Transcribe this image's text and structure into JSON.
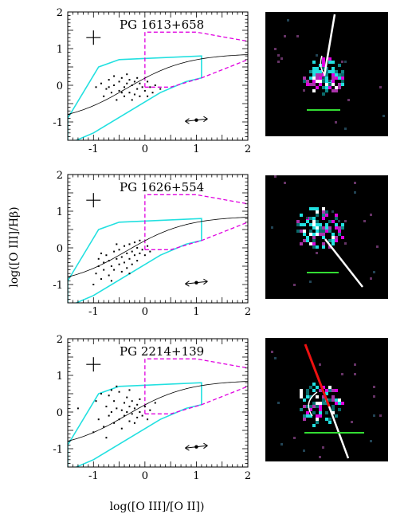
{
  "figure": {
    "ylabel": "log([O III]/Hβ)",
    "xlabel": "log([O III]/[O II])"
  },
  "colors": {
    "cyan": "#22e0e0",
    "magenta": "#e000e0",
    "green": "#33dd33",
    "red": "#ee1111",
    "white": "#ffffff",
    "image_bg": "#000000"
  },
  "chart_data": [
    {
      "type": "scatter",
      "title": "PG 1613+658",
      "xlim": [
        -1.5,
        2
      ],
      "ylim": [
        -1.5,
        2
      ],
      "x_ticks": [
        "-1",
        "0",
        "1",
        "2"
      ],
      "y_ticks": [
        "-1",
        "0",
        "1",
        "2"
      ],
      "points": [
        [
          -0.95,
          -0.05
        ],
        [
          -0.85,
          0.05
        ],
        [
          -0.8,
          -0.3
        ],
        [
          -0.75,
          -0.1
        ],
        [
          -0.7,
          0.15
        ],
        [
          -0.65,
          -0.2
        ],
        [
          -0.6,
          0.0
        ],
        [
          -0.55,
          -0.4
        ],
        [
          -0.5,
          0.1
        ],
        [
          -0.5,
          -0.15
        ],
        [
          -0.45,
          0.2
        ],
        [
          -0.4,
          -0.05
        ],
        [
          -0.4,
          -0.3
        ],
        [
          -0.35,
          0.05
        ],
        [
          -0.3,
          0.15
        ],
        [
          -0.3,
          -0.2
        ],
        [
          -0.25,
          0.0
        ],
        [
          -0.2,
          0.1
        ],
        [
          -0.2,
          -0.25
        ],
        [
          -0.15,
          -0.1
        ],
        [
          -0.1,
          0.05
        ],
        [
          -0.1,
          -0.3
        ],
        [
          -0.05,
          -0.05
        ],
        [
          0.0,
          -0.15
        ],
        [
          0.05,
          0.1
        ],
        [
          0.1,
          -0.05
        ],
        [
          0.15,
          -0.2
        ],
        [
          0.2,
          0.0
        ],
        [
          0.3,
          -0.1
        ],
        [
          -0.6,
          0.25
        ],
        [
          -0.25,
          -0.4
        ],
        [
          -0.35,
          0.3
        ],
        [
          -0.15,
          0.2
        ],
        [
          0.05,
          -0.3
        ],
        [
          -0.7,
          -0.05
        ],
        [
          -0.45,
          -0.2
        ]
      ]
    },
    {
      "type": "scatter",
      "title": "PG 1626+554",
      "xlim": [
        -1.5,
        2
      ],
      "ylim": [
        -1.5,
        2
      ],
      "x_ticks": [
        "-1",
        "0",
        "1",
        "2"
      ],
      "y_ticks": [
        "-1",
        "0",
        "1",
        "2"
      ],
      "points": [
        [
          -1.0,
          -1.0
        ],
        [
          -0.95,
          -0.7
        ],
        [
          -0.9,
          -0.5
        ],
        [
          -0.85,
          -0.85
        ],
        [
          -0.8,
          -0.4
        ],
        [
          -0.8,
          -0.6
        ],
        [
          -0.75,
          -0.2
        ],
        [
          -0.7,
          -0.75
        ],
        [
          -0.7,
          -0.35
        ],
        [
          -0.65,
          -0.5
        ],
        [
          -0.6,
          -0.1
        ],
        [
          -0.6,
          -0.6
        ],
        [
          -0.55,
          -0.3
        ],
        [
          -0.5,
          -0.45
        ],
        [
          -0.5,
          -0.05
        ],
        [
          -0.45,
          -0.25
        ],
        [
          -0.45,
          -0.65
        ],
        [
          -0.4,
          -0.4
        ],
        [
          -0.4,
          0.05
        ],
        [
          -0.35,
          -0.15
        ],
        [
          -0.35,
          -0.55
        ],
        [
          -0.3,
          -0.3
        ],
        [
          -0.3,
          0.1
        ],
        [
          -0.25,
          -0.1
        ],
        [
          -0.25,
          -0.45
        ],
        [
          -0.2,
          -0.2
        ],
        [
          -0.2,
          0.15
        ],
        [
          -0.15,
          -0.35
        ],
        [
          -0.15,
          0.0
        ],
        [
          -0.1,
          -0.15
        ],
        [
          -0.1,
          0.2
        ],
        [
          -0.05,
          -0.05
        ],
        [
          0.0,
          -0.2
        ],
        [
          0.05,
          0.05
        ],
        [
          0.1,
          -0.1
        ],
        [
          -0.9,
          -0.3
        ],
        [
          -0.65,
          -0.9
        ],
        [
          -0.55,
          0.1
        ],
        [
          -0.85,
          -0.15
        ],
        [
          -0.3,
          -0.7
        ]
      ]
    },
    {
      "type": "scatter",
      "title": "PG 2214+139",
      "xlim": [
        -1.5,
        2
      ],
      "ylim": [
        -1.5,
        2
      ],
      "x_ticks": [
        "-1",
        "0",
        "1",
        "2"
      ],
      "y_ticks": [
        "-1",
        "0",
        "1",
        "2"
      ],
      "points": [
        [
          -1.3,
          0.1
        ],
        [
          -1.0,
          -0.55
        ],
        [
          -0.95,
          0.3
        ],
        [
          -0.9,
          -0.2
        ],
        [
          -0.85,
          0.5
        ],
        [
          -0.8,
          -0.4
        ],
        [
          -0.75,
          0.15
        ],
        [
          -0.7,
          -0.1
        ],
        [
          -0.7,
          0.45
        ],
        [
          -0.65,
          0.0
        ],
        [
          -0.6,
          -0.3
        ],
        [
          -0.6,
          0.3
        ],
        [
          -0.55,
          0.1
        ],
        [
          -0.5,
          -0.2
        ],
        [
          -0.5,
          0.55
        ],
        [
          -0.45,
          0.05
        ],
        [
          -0.45,
          -0.45
        ],
        [
          -0.4,
          0.25
        ],
        [
          -0.4,
          -0.1
        ],
        [
          -0.35,
          0.4
        ],
        [
          -0.35,
          0.0
        ],
        [
          -0.3,
          -0.25
        ],
        [
          -0.3,
          0.15
        ],
        [
          -0.25,
          0.3
        ],
        [
          -0.25,
          -0.05
        ],
        [
          -0.2,
          0.1
        ],
        [
          -0.2,
          -0.3
        ],
        [
          -0.15,
          0.2
        ],
        [
          -0.15,
          -0.15
        ],
        [
          -0.1,
          0.0
        ],
        [
          -0.1,
          0.35
        ],
        [
          -0.05,
          -0.1
        ],
        [
          0.0,
          0.15
        ],
        [
          0.05,
          -0.2
        ],
        [
          0.1,
          0.05
        ],
        [
          -0.55,
          0.7
        ],
        [
          -0.75,
          -0.7
        ],
        [
          -0.3,
          0.6
        ],
        [
          0.2,
          0.25
        ],
        [
          -0.65,
          0.6
        ]
      ]
    }
  ]
}
